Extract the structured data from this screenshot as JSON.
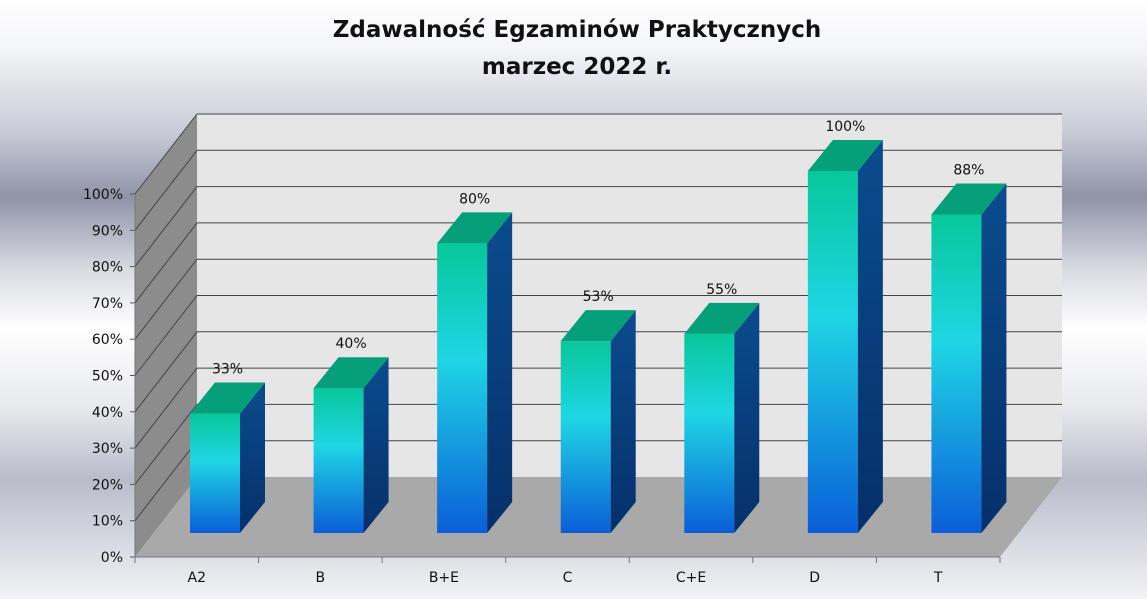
{
  "title_line1": "Zdawalność Egzaminów Praktycznych",
  "title_line2": "marzec 2022 r.",
  "chart_data": {
    "type": "bar",
    "title": "Zdawalność Egzaminów Praktycznych marzec 2022 r.",
    "categories": [
      "A2",
      "B",
      "B+E",
      "C",
      "C+E",
      "D",
      "T"
    ],
    "values": [
      33,
      40,
      80,
      53,
      55,
      100,
      88
    ],
    "data_labels": [
      "33%",
      "40%",
      "80%",
      "53%",
      "55%",
      "100%",
      "88%"
    ],
    "y_ticks": [
      "0%",
      "10%",
      "20%",
      "30%",
      "40%",
      "50%",
      "60%",
      "70%",
      "80%",
      "90%",
      "100%"
    ],
    "ylim": [
      0,
      100
    ],
    "grid": true,
    "three_d": true,
    "colors": {
      "bar_top": "#07c79a",
      "bar_mid": "#1fd6e4",
      "bar_bottom": "#0a5ed8",
      "bar_side": "#0a4c8e",
      "cap": "#05a07a",
      "wall": "#e6e6e6",
      "side_wall": "#8c8c8c",
      "floor": "#a9a9a9",
      "grid": "#444444"
    }
  }
}
